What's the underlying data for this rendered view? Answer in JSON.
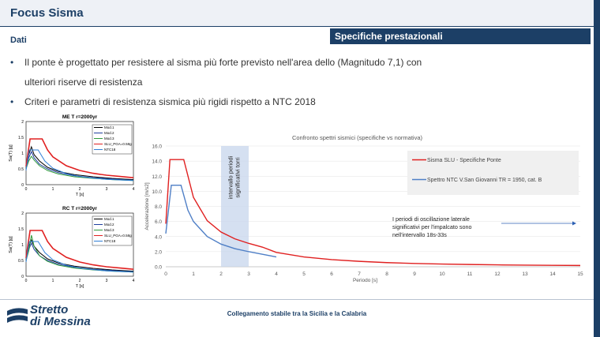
{
  "header": {
    "title": "Focus Sisma",
    "section": "Dati",
    "banner": "Specifiche prestazionali"
  },
  "bullets": [
    {
      "line1": "Il ponte è progettato per resistere al sisma più forte previsto nell'area dello (Magnitudo 7,1) con",
      "line2": "ulteriori riserve di resistenza"
    },
    {
      "line1": "Criteri e parametri di resistenza sismica più rigidi rispetto a NTC 2018",
      "line2": ""
    }
  ],
  "colors": {
    "brand": "#1c3f66",
    "red": "#e02020",
    "blue": "#4f7fc6"
  },
  "chart_data": [
    {
      "type": "line",
      "title": "ME T_r=2000yr",
      "ylabel": "Sa(T) [g]",
      "xlabel": "T [s]",
      "xlim": [
        0,
        4
      ],
      "ylim": [
        0,
        2
      ],
      "xticks": [
        "0",
        "1",
        "2",
        "3",
        "4"
      ],
      "yticks": [
        "0",
        "0.5",
        "1",
        "1.5",
        "2"
      ],
      "legend": [
        "Mod.1",
        "Mod.2",
        "Mod.3",
        "SLU_PGA=0.58g",
        "NTC18"
      ],
      "series": [
        {
          "name": "Mod.1",
          "color": "#000000",
          "x": [
            0,
            0.1,
            0.2,
            0.3,
            0.5,
            0.8,
            1.2,
            1.8,
            2.5,
            3.2,
            4
          ],
          "y": [
            0.5,
            0.95,
            1.2,
            0.95,
            0.75,
            0.55,
            0.42,
            0.32,
            0.25,
            0.2,
            0.16
          ]
        },
        {
          "name": "Mod.2",
          "color": "#1f3f9f",
          "x": [
            0,
            0.1,
            0.2,
            0.3,
            0.5,
            0.8,
            1.2,
            1.8,
            2.5,
            3.2,
            4
          ],
          "y": [
            0.5,
            0.85,
            1.05,
            0.85,
            0.65,
            0.5,
            0.38,
            0.28,
            0.22,
            0.18,
            0.14
          ]
        },
        {
          "name": "Mod.3",
          "color": "#2e9a3c",
          "x": [
            0,
            0.1,
            0.2,
            0.3,
            0.5,
            0.8,
            1.2,
            1.8,
            2.5,
            3.2,
            4
          ],
          "y": [
            0.5,
            0.75,
            0.9,
            0.78,
            0.6,
            0.45,
            0.34,
            0.25,
            0.2,
            0.16,
            0.13
          ]
        },
        {
          "name": "SLU_PGA=0.58g",
          "color": "#e02020",
          "x": [
            0,
            0.15,
            0.6,
            0.8,
            1.0,
            1.5,
            2.0,
            2.5,
            3.0,
            3.5,
            4
          ],
          "y": [
            0.58,
            1.45,
            1.45,
            1.1,
            0.88,
            0.6,
            0.45,
            0.36,
            0.3,
            0.26,
            0.22
          ]
        },
        {
          "name": "NTC18",
          "color": "#2f7fd6",
          "x": [
            0,
            0.12,
            0.45,
            0.7,
            1.0,
            1.5,
            2.0,
            2.5,
            3.0,
            3.5,
            4
          ],
          "y": [
            0.45,
            1.1,
            1.1,
            0.75,
            0.52,
            0.35,
            0.26,
            0.21,
            0.17,
            0.15,
            0.13
          ]
        }
      ]
    },
    {
      "type": "line",
      "title": "RC T_r=2000yr",
      "ylabel": "Sa(T) [g]",
      "xlabel": "T [s]",
      "xlim": [
        0,
        4
      ],
      "ylim": [
        0,
        2
      ],
      "xticks": [
        "0",
        "1",
        "2",
        "3",
        "4"
      ],
      "yticks": [
        "0",
        "0.5",
        "1",
        "1.5",
        "2"
      ],
      "legend": [
        "Mod.1",
        "Mod.2",
        "Mod.3",
        "SLU_PGA=0.58g",
        "NTC18"
      ],
      "series": [
        {
          "name": "Mod.1",
          "color": "#000000",
          "x": [
            0,
            0.1,
            0.2,
            0.3,
            0.5,
            0.8,
            1.2,
            1.8,
            2.5,
            3.2,
            4
          ],
          "y": [
            0.5,
            0.95,
            1.15,
            0.95,
            0.75,
            0.55,
            0.42,
            0.32,
            0.25,
            0.2,
            0.16
          ]
        },
        {
          "name": "Mod.2",
          "color": "#1f3f9f",
          "x": [
            0,
            0.1,
            0.2,
            0.3,
            0.5,
            0.8,
            1.2,
            1.8,
            2.5,
            3.2,
            4
          ],
          "y": [
            0.5,
            0.85,
            1.05,
            0.85,
            0.65,
            0.5,
            0.38,
            0.28,
            0.22,
            0.18,
            0.14
          ]
        },
        {
          "name": "Mod.3",
          "color": "#2e9a3c",
          "x": [
            0,
            0.1,
            0.2,
            0.3,
            0.5,
            0.8,
            1.2,
            1.8,
            2.5,
            3.2,
            4
          ],
          "y": [
            0.5,
            0.8,
            1.3,
            0.95,
            0.65,
            0.47,
            0.35,
            0.26,
            0.2,
            0.16,
            0.13
          ]
        },
        {
          "name": "SLU_PGA=0.58g",
          "color": "#e02020",
          "x": [
            0,
            0.15,
            0.6,
            0.8,
            1.0,
            1.5,
            2.0,
            2.5,
            3.0,
            3.5,
            4
          ],
          "y": [
            0.58,
            1.45,
            1.45,
            1.1,
            0.88,
            0.6,
            0.45,
            0.36,
            0.3,
            0.26,
            0.22
          ]
        },
        {
          "name": "NTC18",
          "color": "#2f7fd6",
          "x": [
            0,
            0.12,
            0.45,
            0.7,
            1.0,
            1.5,
            2.0,
            2.5,
            3.0,
            3.5,
            4
          ],
          "y": [
            0.45,
            1.1,
            1.1,
            0.75,
            0.52,
            0.35,
            0.26,
            0.21,
            0.17,
            0.15,
            0.13
          ]
        }
      ]
    },
    {
      "type": "line",
      "title": "Confronto spettri sismici (specifiche vs normativa)",
      "xlabel": "Periodo [s]",
      "ylabel": "Accelerazione [m/s2]",
      "xlim": [
        0,
        15
      ],
      "ylim": [
        0,
        16
      ],
      "xticks": [
        "0",
        "1",
        "2",
        "3",
        "4",
        "5",
        "6",
        "7",
        "8",
        "9",
        "10",
        "11",
        "12",
        "13",
        "14",
        "15"
      ],
      "yticks": [
        "0.0",
        "2.0",
        "4.0",
        "6.0",
        "8.0",
        "10.0",
        "12.0",
        "14.0",
        "16.0"
      ],
      "legend": [
        "Sisma SLU - Specifiche Ponte",
        "Spettro NTC V.San Giovanni TR = 1950, cat. B"
      ],
      "band": {
        "x0": 2,
        "x1": 3,
        "label": "intervallo periodi significativi torri"
      },
      "annotation": [
        "I periodi di oscillazione laterale",
        "significativi per l'impalcato sono",
        "nell'intervallo 18s-33s"
      ],
      "series": [
        {
          "name": "Sisma SLU - Specifiche Ponte",
          "color": "#e02020",
          "x": [
            0,
            0.15,
            0.65,
            1.0,
            1.5,
            2.0,
            2.5,
            3.0,
            3.5,
            4,
            5,
            6,
            7,
            8,
            9,
            10,
            11,
            12,
            13,
            14,
            15
          ],
          "y": [
            5.7,
            14.2,
            14.2,
            9.2,
            6.1,
            4.6,
            3.7,
            3.1,
            2.6,
            1.9,
            1.3,
            0.95,
            0.72,
            0.55,
            0.44,
            0.36,
            0.3,
            0.25,
            0.22,
            0.19,
            0.17
          ]
        },
        {
          "name": "Spettro NTC V.San Giovanni TR = 1950, cat. B",
          "color": "#4f7fc6",
          "x": [
            0,
            0.2,
            0.55,
            0.8,
            1.0,
            1.5,
            2.0,
            2.5,
            3.0,
            3.5,
            4.0
          ],
          "y": [
            4.4,
            10.8,
            10.8,
            7.5,
            6.0,
            4.0,
            3.0,
            2.4,
            2.0,
            1.65,
            1.3
          ]
        }
      ]
    }
  ],
  "footer": {
    "text": "Collegamento stabile tra la Sicilia e la Calabria",
    "logo_line1": "Stretto",
    "logo_line2": "di Messina"
  }
}
